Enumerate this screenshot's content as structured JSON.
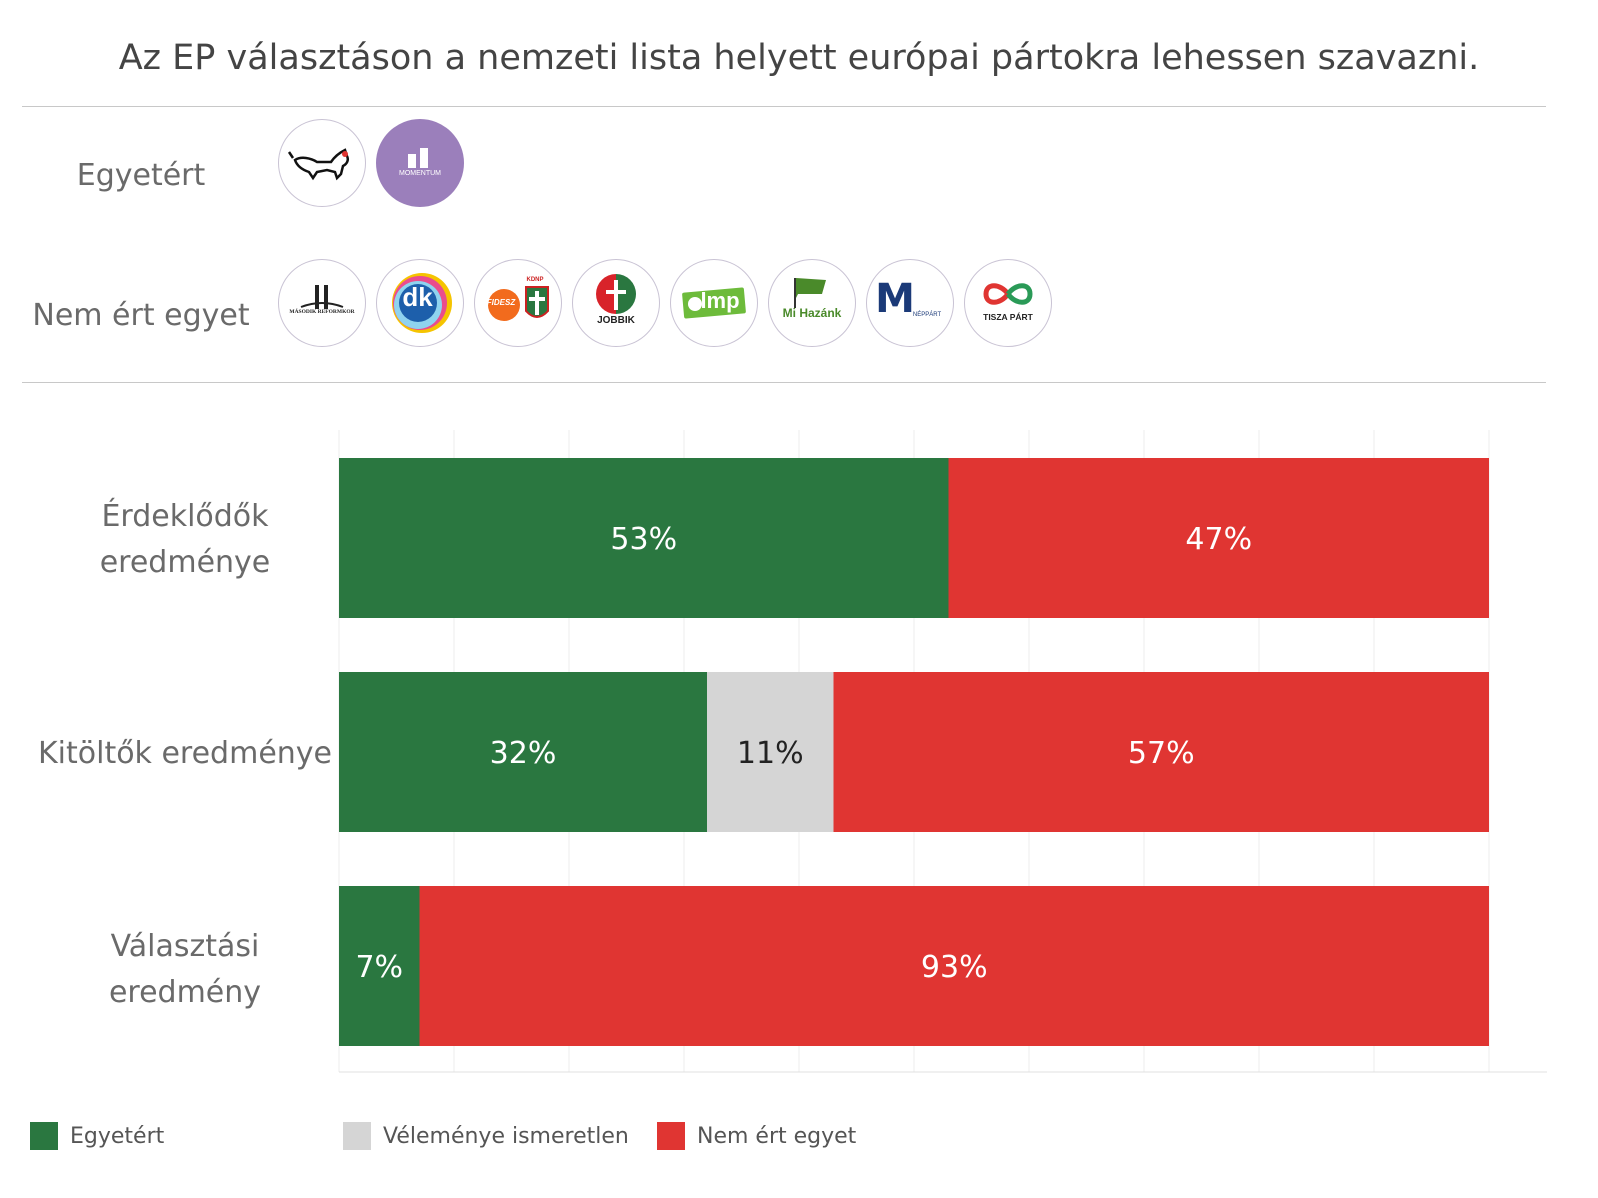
{
  "title": "Az EP választáson a nemzeti lista helyett európai pártokra lehessen szavazni.",
  "parties": {
    "agree_label": "Egyetért",
    "disagree_label": "Nem ért egyet",
    "agree": [
      {
        "icon": "mkkp-dog-logo-icon"
      },
      {
        "icon": "momentum-logo-icon",
        "text": "MOMENTUM"
      }
    ],
    "disagree": [
      {
        "icon": "masodik-reformkor-logo-icon",
        "text": "MÁSODIK REFORMKOR"
      },
      {
        "icon": "dk-logo-icon",
        "text": "dk"
      },
      {
        "icon": "fidesz-kdnp-logo-icon",
        "text": "FIDESZ",
        "text2": "KDNP"
      },
      {
        "icon": "jobbik-logo-icon",
        "text": "JOBBIK"
      },
      {
        "icon": "lmp-logo-icon",
        "text": "lmp"
      },
      {
        "icon": "mi-hazank-logo-icon",
        "text": "Mi Hazánk"
      },
      {
        "icon": "mmn-logo-icon",
        "text": "M",
        "text2": "NÉPPÁRT"
      },
      {
        "icon": "tisza-logo-icon",
        "text": "TISZA PÁRT"
      }
    ]
  },
  "colors": {
    "agree": "#2a7740",
    "unknown": "#d5d5d5",
    "disagree": "#e03532"
  },
  "chart_data": {
    "type": "bar",
    "orientation": "horizontal",
    "stacked": true,
    "normalized": true,
    "xlim": [
      0,
      100
    ],
    "grid": true,
    "legend_position": "bottom",
    "categories": [
      {
        "line1": "Érdeklődők",
        "line2": "eredménye"
      },
      {
        "line1": "Kitöltők eredménye",
        "line2": ""
      },
      {
        "line1": "Választási",
        "line2": "eredmény"
      }
    ],
    "series": [
      {
        "name": "Egyetért",
        "color": "#2a7740",
        "values": [
          53,
          32,
          7
        ],
        "labels": [
          "53%",
          "32%",
          "7%"
        ]
      },
      {
        "name": "Véleménye ismeretlen",
        "color": "#d5d5d5",
        "values": [
          0,
          11,
          0
        ],
        "labels": [
          "",
          "11%",
          ""
        ]
      },
      {
        "name": "Nem ért egyet",
        "color": "#e03532",
        "values": [
          47,
          57,
          93
        ],
        "labels": [
          "47%",
          "57%",
          "93%"
        ]
      }
    ]
  }
}
